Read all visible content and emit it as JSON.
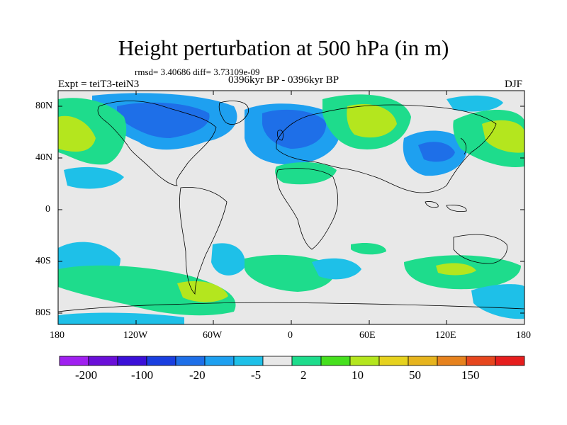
{
  "title": "Height perturbation at 500 hPa (in m)",
  "stats": "rmsd= 3.40686 diff= 3.73109e-09",
  "experiment": "Expt = teiT3-teiN3",
  "period": "0396kyr BP - 0396kyr BP",
  "season": "DJF",
  "map": {
    "lat_labels": [
      "80N",
      "40N",
      "0",
      "40S",
      "80S"
    ],
    "lon_labels": [
      "180",
      "120W",
      "60W",
      "0",
      "60E",
      "120E",
      "180"
    ],
    "lat_range": [
      -90,
      90
    ],
    "lon_range": [
      -180,
      180
    ],
    "background_color": "#e8e8e8",
    "coastline_color": "#000000"
  },
  "colorbar": {
    "labels": [
      "-200",
      "-100",
      "-20",
      "-5",
      "2",
      "10",
      "50",
      "150"
    ],
    "colors": [
      "#a020f0",
      "#6a0fd8",
      "#3b10d8",
      "#1a3fe0",
      "#1e6fe8",
      "#1ea0f0",
      "#1ec0e8",
      "#e8e8e8",
      "#1edc8c",
      "#46e01e",
      "#b4e61e",
      "#e6d21e",
      "#e6b41e",
      "#e6821e",
      "#e6461e",
      "#e61e1e"
    ]
  }
}
